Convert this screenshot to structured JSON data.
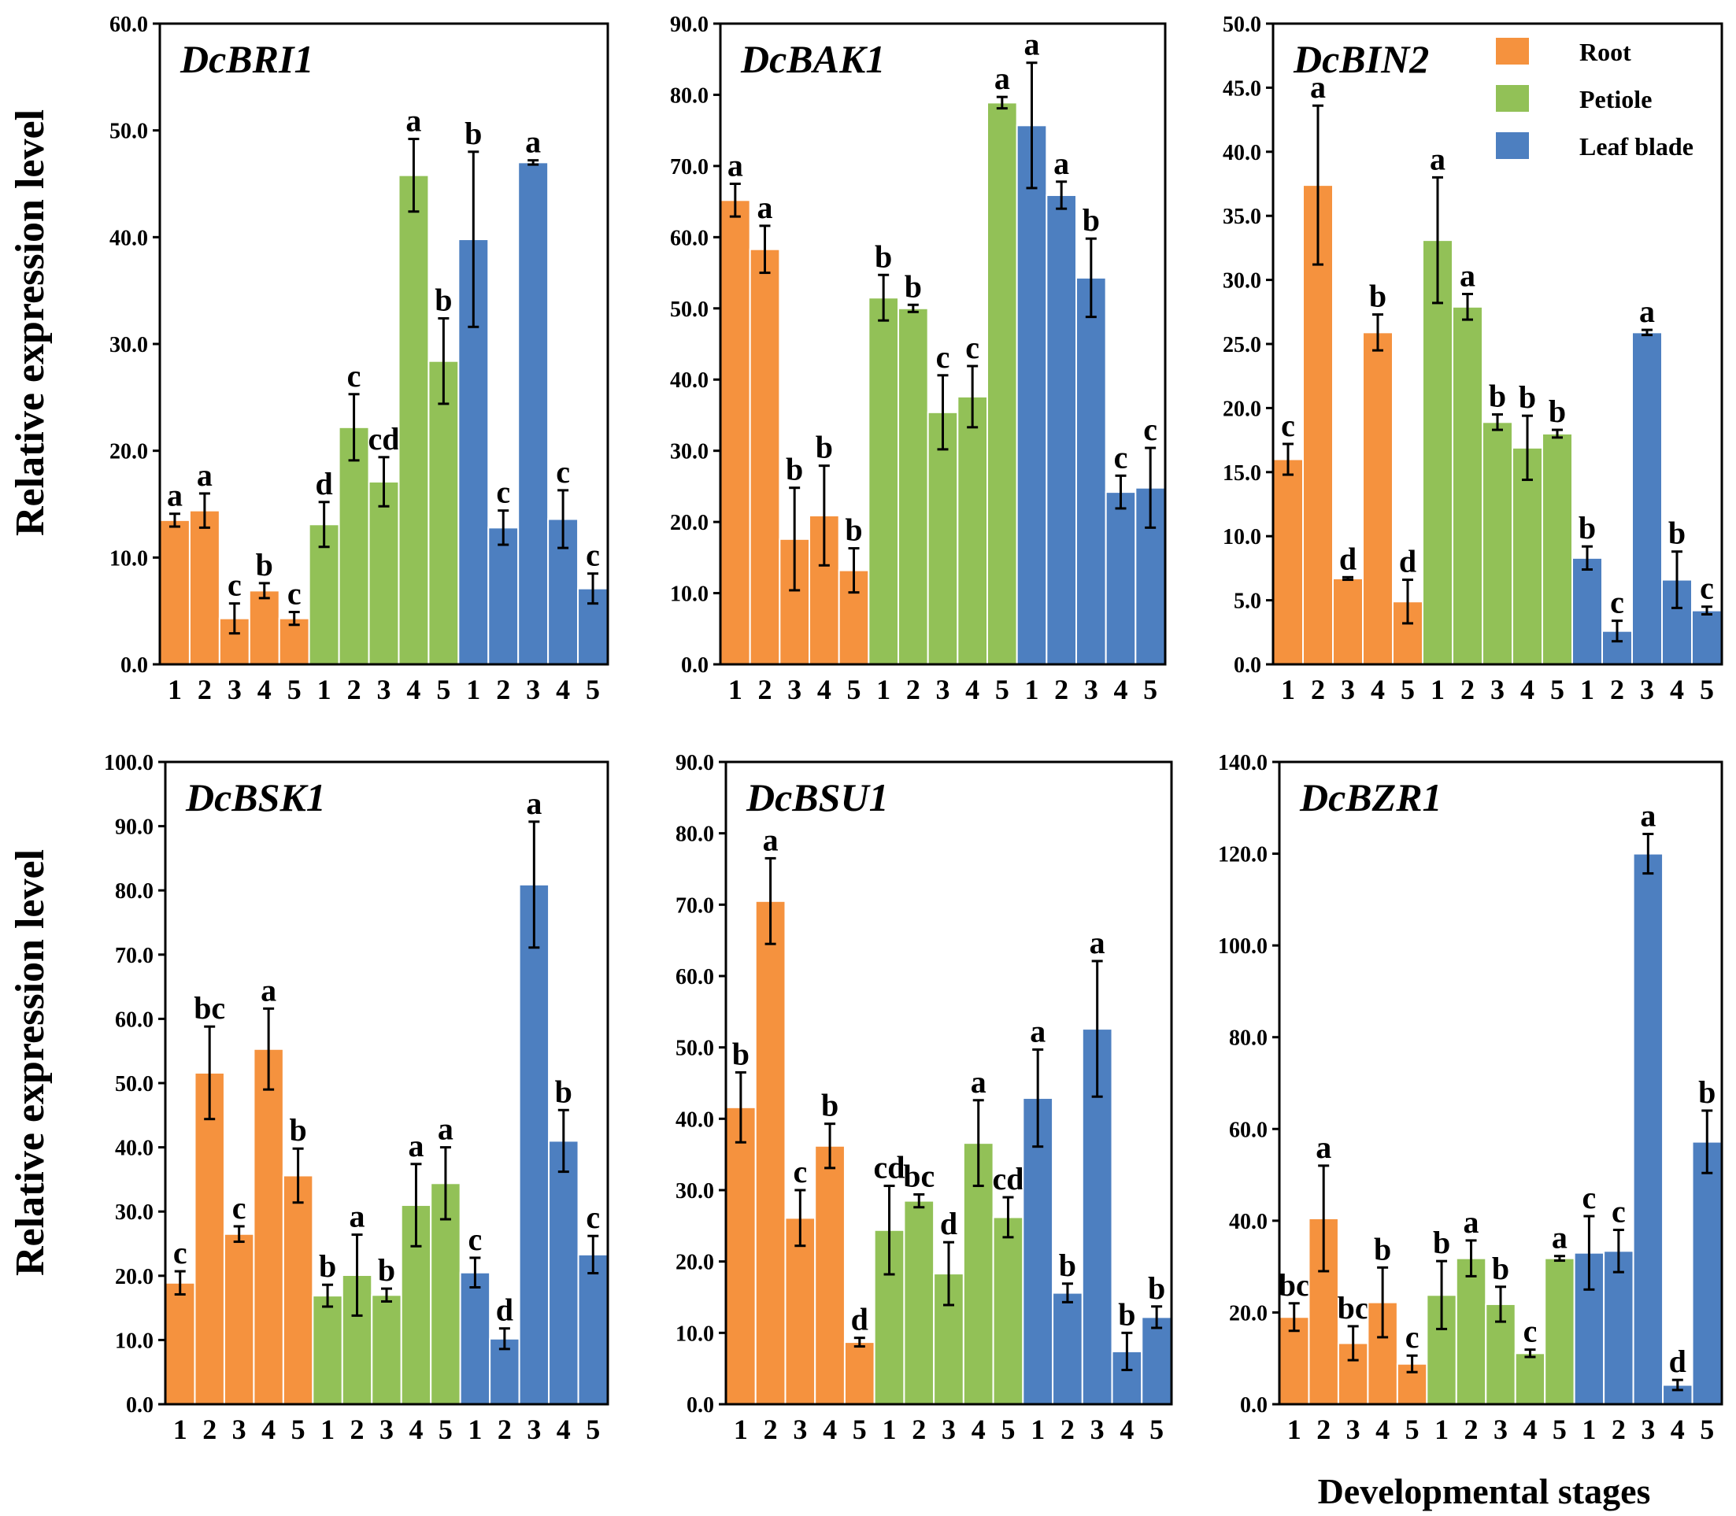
{
  "figure": {
    "ylabel": "Relative expression level",
    "xlabel": "Developmental stages"
  },
  "colors": {
    "Root": "#f5923e",
    "Petiole": "#92c157",
    "Leaf blade": "#4d7fc0",
    "axis": "#000000"
  },
  "legend": [
    "Root",
    "Petiole",
    "Leaf blade"
  ],
  "chart_data": [
    {
      "type": "bar",
      "title": "DcBRI1",
      "ylim": [
        0,
        60
      ],
      "yticks": [
        "0.0",
        "10.0",
        "20.0",
        "30.0",
        "40.0",
        "50.0",
        "60.0"
      ],
      "categories": [
        "1",
        "2",
        "3",
        "4",
        "5"
      ],
      "series": [
        {
          "name": "Root",
          "values": [
            13.5,
            14.4,
            4.3,
            6.9,
            4.3
          ],
          "errors": [
            0.6,
            1.6,
            1.4,
            0.7,
            0.6
          ],
          "letters": [
            "a",
            "a",
            "c",
            "b",
            "c"
          ]
        },
        {
          "name": "Petiole",
          "values": [
            13.1,
            22.2,
            17.1,
            45.8,
            28.4
          ],
          "errors": [
            2.1,
            3.1,
            2.3,
            3.4,
            4.0
          ],
          "letters": [
            "d",
            "c",
            "cd",
            "a",
            "b"
          ]
        },
        {
          "name": "Leaf blade",
          "values": [
            39.8,
            12.8,
            47.0,
            13.6,
            7.1
          ],
          "errors": [
            8.2,
            1.6,
            0.2,
            2.7,
            1.4
          ],
          "letters": [
            "b",
            "c",
            "a",
            "c",
            "c"
          ]
        }
      ]
    },
    {
      "type": "bar",
      "title": "DcBAK1",
      "ylim": [
        0,
        90
      ],
      "yticks": [
        "0.0",
        "10.0",
        "20.0",
        "30.0",
        "40.0",
        "50.0",
        "60.0",
        "70.0",
        "80.0",
        "90.0"
      ],
      "categories": [
        "1",
        "2",
        "3",
        "4",
        "5"
      ],
      "series": [
        {
          "name": "Root",
          "values": [
            65.2,
            58.3,
            17.6,
            20.9,
            13.2
          ],
          "errors": [
            2.3,
            3.3,
            7.2,
            7.0,
            3.1
          ],
          "letters": [
            "a",
            "a",
            "b",
            "b",
            "b"
          ]
        },
        {
          "name": "Petiole",
          "values": [
            51.5,
            50.0,
            35.4,
            37.6,
            78.9
          ],
          "errors": [
            3.2,
            0.5,
            5.2,
            4.3,
            0.8
          ],
          "letters": [
            "b",
            "b",
            "c",
            "c",
            "a"
          ]
        },
        {
          "name": "Leaf blade",
          "values": [
            75.7,
            65.9,
            54.3,
            24.2,
            24.8
          ],
          "errors": [
            8.8,
            1.9,
            5.5,
            2.3,
            5.6
          ],
          "letters": [
            "a",
            "a",
            "b",
            "c",
            "c"
          ]
        }
      ]
    },
    {
      "type": "bar",
      "title": "DcBIN2",
      "ylim": [
        0,
        50
      ],
      "yticks": [
        "0.0",
        "5.0",
        "10.0",
        "15.0",
        "20.0",
        "25.0",
        "30.0",
        "35.0",
        "40.0",
        "45.0",
        "50.0"
      ],
      "categories": [
        "1",
        "2",
        "3",
        "4",
        "5"
      ],
      "legend": "top-right",
      "series": [
        {
          "name": "Root",
          "values": [
            16.0,
            37.4,
            6.7,
            25.9,
            4.9
          ],
          "errors": [
            1.2,
            6.2,
            0.1,
            1.4,
            1.7
          ],
          "letters": [
            "c",
            "a",
            "d",
            "b",
            "d"
          ]
        },
        {
          "name": "Petiole",
          "values": [
            33.1,
            27.9,
            18.9,
            16.9,
            18.0
          ],
          "errors": [
            4.9,
            1.0,
            0.6,
            2.5,
            0.3
          ],
          "letters": [
            "a",
            "a",
            "b",
            "b",
            "b"
          ]
        },
        {
          "name": "Leaf blade",
          "values": [
            8.3,
            2.6,
            25.9,
            6.6,
            4.2
          ],
          "errors": [
            0.9,
            0.8,
            0.2,
            2.2,
            0.3
          ],
          "letters": [
            "b",
            "c",
            "a",
            "b",
            "c"
          ]
        }
      ]
    },
    {
      "type": "bar",
      "title": "DcBSK1",
      "ylim": [
        0,
        100
      ],
      "yticks": [
        "0.0",
        "10.0",
        "20.0",
        "30.0",
        "40.0",
        "50.0",
        "60.0",
        "70.0",
        "80.0",
        "90.0",
        "100.0"
      ],
      "categories": [
        "1",
        "2",
        "3",
        "4",
        "5"
      ],
      "series": [
        {
          "name": "Root",
          "values": [
            18.9,
            51.6,
            26.5,
            55.3,
            35.6
          ],
          "errors": [
            1.8,
            7.2,
            1.2,
            6.3,
            4.2
          ],
          "letters": [
            "c",
            "bc",
            "c",
            "a",
            "b"
          ]
        },
        {
          "name": "Petiole",
          "values": [
            16.9,
            20.1,
            17.0,
            31.0,
            34.4
          ],
          "errors": [
            1.7,
            6.3,
            1.0,
            6.4,
            5.6
          ],
          "letters": [
            "b",
            "a",
            "b",
            "a",
            "a"
          ]
        },
        {
          "name": "Leaf blade",
          "values": [
            20.5,
            10.2,
            80.9,
            41.0,
            23.3
          ],
          "errors": [
            2.3,
            1.6,
            9.8,
            4.8,
            2.9
          ],
          "letters": [
            "c",
            "d",
            "a",
            "b",
            "c"
          ]
        }
      ]
    },
    {
      "type": "bar",
      "title": "DcBSU1",
      "ylim": [
        0,
        90
      ],
      "yticks": [
        "0.0",
        "10.0",
        "20.0",
        "30.0",
        "40.0",
        "50.0",
        "60.0",
        "70.0",
        "80.0",
        "90.0"
      ],
      "categories": [
        "1",
        "2",
        "3",
        "4",
        "5"
      ],
      "series": [
        {
          "name": "Root",
          "values": [
            41.6,
            70.5,
            26.1,
            36.2,
            8.7
          ],
          "errors": [
            4.9,
            6.0,
            3.9,
            3.1,
            0.6
          ],
          "letters": [
            "b",
            "a",
            "c",
            "b",
            "d"
          ]
        },
        {
          "name": "Petiole",
          "values": [
            24.4,
            28.5,
            18.3,
            36.6,
            26.2
          ],
          "errors": [
            6.2,
            0.9,
            4.4,
            6.0,
            2.8
          ],
          "letters": [
            "cd",
            "bc",
            "d",
            "a",
            "cd"
          ]
        },
        {
          "name": "Leaf blade",
          "values": [
            42.9,
            15.6,
            52.6,
            7.4,
            12.2
          ],
          "errors": [
            6.8,
            1.3,
            9.5,
            2.6,
            1.5
          ],
          "letters": [
            "a",
            "b",
            "a",
            "b",
            "b"
          ]
        }
      ]
    },
    {
      "type": "bar",
      "title": "DcBZR1",
      "ylim": [
        0,
        140
      ],
      "yticks": [
        "0.0",
        "20.0",
        "40.0",
        "60.0",
        "80.0",
        "100.0",
        "120.0",
        "140.0"
      ],
      "categories": [
        "1",
        "2",
        "3",
        "4",
        "5"
      ],
      "series": [
        {
          "name": "Root",
          "values": [
            19.0,
            40.5,
            13.3,
            22.2,
            8.8
          ],
          "errors": [
            3.0,
            11.5,
            3.7,
            7.6,
            1.8
          ],
          "letters": [
            "bc",
            "a",
            "bc",
            "b",
            "c"
          ]
        },
        {
          "name": "Petiole",
          "values": [
            23.8,
            31.8,
            21.8,
            11.1,
            31.8
          ],
          "errors": [
            7.4,
            3.9,
            3.8,
            0.8,
            0.5
          ],
          "letters": [
            "b",
            "a",
            "b",
            "c",
            "a"
          ]
        },
        {
          "name": "Leaf blade",
          "values": [
            33.0,
            33.4,
            120.0,
            4.2,
            57.2
          ],
          "errors": [
            8.0,
            4.6,
            4.3,
            1.1,
            6.8
          ],
          "letters": [
            "c",
            "c",
            "a",
            "d",
            "b"
          ]
        }
      ]
    }
  ]
}
